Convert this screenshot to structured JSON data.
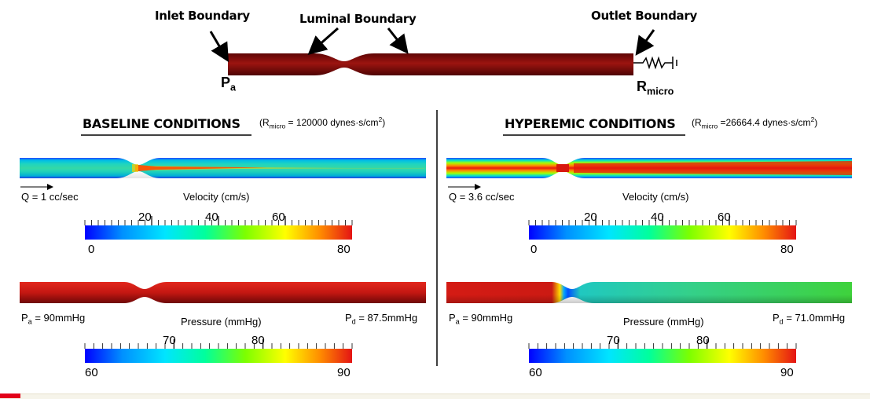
{
  "top": {
    "inlet": "Inlet Boundary",
    "luminal": "Luminal Boundary",
    "outlet": "Outlet Boundary",
    "pa_main": "P",
    "pa_sub": "a",
    "rmicro_main": "R",
    "rmicro_sub": "micro"
  },
  "baseline": {
    "title": "BASELINE CONDITIONS",
    "r_prefix": "(R",
    "r_sub": "micro",
    "r_value": " = 120000 dynes·s/cm",
    "r_sup": "2",
    "r_close": ")",
    "flow": "Q = 1 cc/sec",
    "velocity_label": "Velocity (cm/s)",
    "velocity_min": "0",
    "velocity_max": "80",
    "velocity_ticks": [
      "20",
      "40",
      "60"
    ],
    "pa_main": "P",
    "pa_sub": "a",
    "pa_value": " = 90mmHg",
    "pressure_label": "Pressure (mmHg)",
    "pd_main": "P",
    "pd_sub": "d",
    "pd_value": " = 87.5mmHg",
    "pressure_min": "60",
    "pressure_max": "90",
    "pressure_ticks": [
      "70",
      "80"
    ]
  },
  "hyperemic": {
    "title": "HYPEREMIC CONDITIONS",
    "r_prefix": "(R",
    "r_sub": "micro",
    "r_value": " =26664.4 dynes·s/cm",
    "r_sup": "2",
    "r_close": ")",
    "flow": "Q = 3.6 cc/sec",
    "velocity_label": "Velocity (cm/s)",
    "velocity_min": "0",
    "velocity_max": "80",
    "velocity_ticks": [
      "20",
      "40",
      "60"
    ],
    "pa_main": "P",
    "pa_sub": "a",
    "pa_value": " = 90mmHg",
    "pressure_label": "Pressure (mmHg)",
    "pd_main": "P",
    "pd_sub": "d",
    "pd_value": " = 71.0mmHg",
    "pressure_min": "60",
    "pressure_max": "90",
    "pressure_ticks": [
      "70",
      "80"
    ]
  },
  "colors": {
    "vessel_dark_red": "#8b0c0c",
    "vessel_red": "#d1201a",
    "colormap": [
      "#0000ff",
      "#00b4ff",
      "#00ffc8",
      "#66ff00",
      "#ffff00",
      "#ff8c00",
      "#e01010"
    ]
  }
}
